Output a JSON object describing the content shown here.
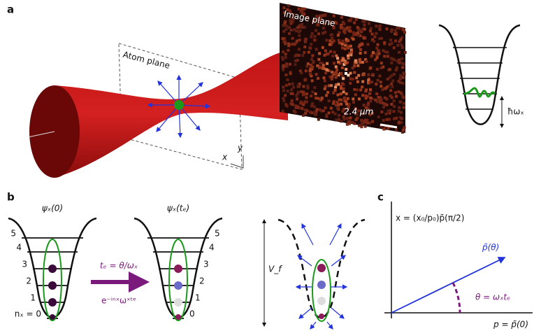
{
  "panel_a": {
    "label": "a",
    "atom_plane": "Atom plane",
    "image_plane": "Image plane",
    "scale_bar": "2.4 μm",
    "axis_x": "x",
    "axis_y": "y",
    "spacing": "ħωₓ"
  },
  "panel_b": {
    "label": "b",
    "state_initial": "ψₓ(0)",
    "state_final": "ψₓ(tₑ)",
    "left_levels": [
      "5",
      "4",
      "3",
      "2",
      "1",
      "nₓ = 0"
    ],
    "right_levels": [
      "5",
      "4",
      "3",
      "2",
      "1",
      "0"
    ],
    "time": "tₑ = θ/ωₓ",
    "phase": "e⁻ⁱⁿˣωˣᵗᵉ",
    "potential": "V_f"
  },
  "panel_c": {
    "label": "c",
    "y_axis": "x = (x₀/p₀)p̃(π/2)",
    "vector": "p̃(θ)",
    "angle": "θ = ωₓtₑ",
    "x_axis": "p = p̃(0)"
  }
}
